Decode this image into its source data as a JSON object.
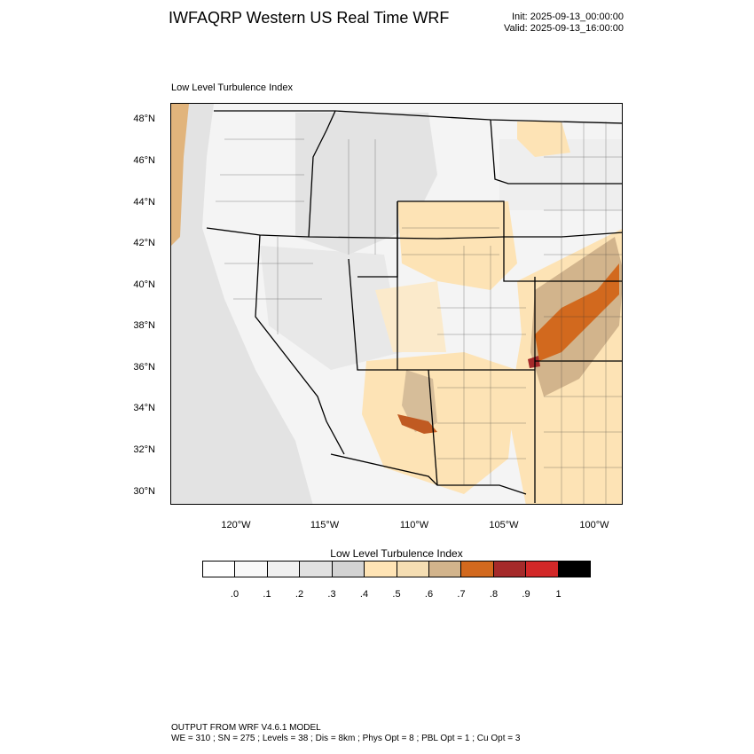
{
  "header": {
    "title": "IWFAQRP Western US Real Time WRF",
    "init": "Init: 2025-09-13_00:00:00",
    "valid": "Valid: 2025-09-13_16:00:00"
  },
  "map": {
    "subtitle": "Low Level Turbulence Index",
    "lat_labels": [
      "48°N",
      "46°N",
      "44°N",
      "42°N",
      "40°N",
      "38°N",
      "36°N",
      "34°N",
      "32°N",
      "30°N"
    ],
    "lon_labels": [
      "120°W",
      "115°W",
      "110°W",
      "105°W",
      "100°W"
    ],
    "colors": {
      "land_base": "#f4f4f4",
      "ocean": "#e6e6e6",
      "light_orange": "#fde3b5",
      "tan": "#d2b48c",
      "dark_orange": "#d2691e",
      "brown_red": "#a52a2a",
      "border": "#000000"
    }
  },
  "colorbar": {
    "title": "Low Level Turbulence Index",
    "colors": [
      "#ffffff",
      "#f9f9f9",
      "#f0f0f0",
      "#e1e1e1",
      "#d3d3d3",
      "#ffe4b5",
      "#f5deb3",
      "#d2b48c",
      "#d2691e",
      "#a52a2a",
      "#d22828",
      "#000000"
    ],
    "labels": [
      ".0",
      ".1",
      ".2",
      ".3",
      ".4",
      ".5",
      ".6",
      ".7",
      ".8",
      ".9",
      "1"
    ]
  },
  "footer": {
    "line1": "OUTPUT FROM WRF V4.6.1 MODEL",
    "line2": "WE = 310 ; SN = 275 ; Levels = 38 ; Dis = 8km ; Phys Opt = 8 ; PBL Opt = 1 ; Cu Opt = 3"
  }
}
